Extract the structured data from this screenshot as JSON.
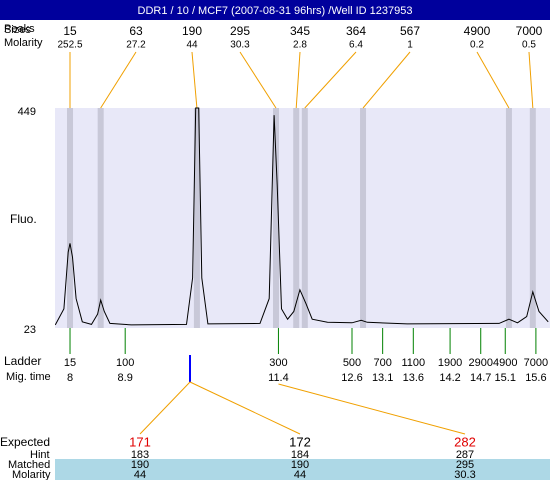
{
  "header": {
    "title": "DDR1 / 10 / MCF7 (2007-08-31 96hrs) /Well ID 1237953"
  },
  "labels": {
    "sizes": "Sizes",
    "peaks": "Peaks",
    "molarity": "Molarity",
    "fluo": "Fluo.",
    "ladder": "Ladder",
    "mig_time": "Mig. time",
    "expected": "Expected",
    "hint": "Hint",
    "matched": "Matched",
    "molarity_row": "Molarity"
  },
  "plot": {
    "xlim": [
      7.755,
      15.83
    ],
    "ylim": [
      23,
      449
    ],
    "yticks": [
      23,
      449
    ],
    "trace": {
      "x": [
        7.76,
        7.9,
        7.97,
        8.0,
        8.04,
        8.1,
        8.2,
        8.35,
        8.45,
        8.5,
        8.56,
        8.65,
        9.0,
        9.9,
        10.0,
        10.05,
        10.1,
        10.15,
        10.25,
        11.1,
        11.25,
        11.33,
        11.38,
        11.45,
        11.55,
        11.65,
        11.75,
        11.85,
        11.95,
        12.2,
        12.6,
        12.75,
        12.85,
        13.5,
        15.0,
        15.16,
        15.3,
        15.45,
        15.55,
        15.65,
        15.8
      ],
      "y": [
        29,
        60,
        170,
        187,
        160,
        80,
        35,
        30,
        50,
        77,
        55,
        32,
        29,
        30,
        120,
        449,
        449,
        120,
        31,
        32,
        80,
        435,
        300,
        60,
        40,
        55,
        97,
        70,
        40,
        34,
        33,
        38,
        34,
        31,
        32,
        40,
        33,
        45,
        93,
        55,
        35
      ]
    }
  },
  "peaks": [
    {
      "size": 15,
      "molarity": 252.5,
      "time": 8.0
    },
    {
      "size": 63,
      "molarity": 27.2,
      "time": 8.5
    },
    {
      "size": 190,
      "molarity": 44,
      "time": 10.07
    },
    {
      "size": 295,
      "molarity": 30.3,
      "time": 11.36
    },
    {
      "size": 345,
      "molarity": 2.8,
      "time": 11.69
    },
    {
      "size": 364,
      "molarity": 6.4,
      "time": 11.83
    },
    {
      "size": 567,
      "molarity": 1,
      "time": 12.78
    },
    {
      "size": 4900,
      "molarity": 0.2,
      "time": 15.16
    },
    {
      "size": 7000,
      "molarity": 0.5,
      "time": 15.55
    }
  ],
  "ladder": [
    {
      "size": 15,
      "time": 8
    },
    {
      "size": 100,
      "time": 8.9
    },
    {
      "size": 300,
      "time": 11.4
    },
    {
      "size": 500,
      "time": 12.6
    },
    {
      "size": 700,
      "time": 13.1
    },
    {
      "size": 1100,
      "time": 13.6
    },
    {
      "size": 1900,
      "time": 14.2
    },
    {
      "size": 2900,
      "time": 14.7
    },
    {
      "size": 4900,
      "time": 15.1
    },
    {
      "size": 7000,
      "time": 15.6
    }
  ],
  "expected": [
    {
      "expected": 171,
      "hint": 183,
      "matched": 190,
      "molarity": 44
    },
    {
      "expected": 172,
      "hint": 184,
      "matched": 190,
      "molarity": 44
    },
    {
      "expected": 282,
      "hint": 287,
      "matched": 295,
      "molarity": 30.3
    }
  ]
}
